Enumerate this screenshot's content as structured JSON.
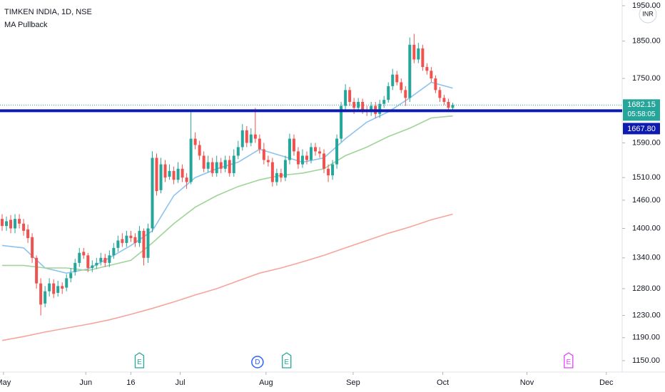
{
  "chart_data": {
    "type": "candlestick",
    "title": "TIMKEN INDIA, 1D, NSE",
    "subtitle": "MA Pullback",
    "currency": "INR",
    "up_color": "#26a69a",
    "down_color": "#ef5350",
    "log_scale": true,
    "x": [
      0,
      1,
      2,
      3,
      4,
      5,
      6,
      7,
      8,
      9,
      10,
      11,
      12,
      13,
      14,
      15,
      16,
      17,
      18,
      19,
      20,
      21,
      22,
      23,
      24,
      25,
      26,
      27,
      28,
      29,
      30,
      31,
      32,
      33,
      34,
      35,
      36,
      37,
      38,
      39,
      40,
      41,
      42,
      43,
      44,
      45,
      46,
      47,
      48,
      49,
      50,
      51,
      52,
      53,
      54,
      55,
      56,
      57,
      58,
      59,
      60,
      61,
      62,
      63,
      64,
      65,
      66,
      67,
      68,
      69,
      70,
      71,
      72,
      73,
      74,
      75,
      76,
      77,
      78,
      79,
      80,
      81,
      82,
      83,
      84,
      85,
      86,
      87,
      88,
      89,
      90,
      91,
      92,
      93,
      94,
      95,
      96,
      97,
      98,
      99,
      100,
      101,
      102,
      103,
      104,
      105
    ],
    "open": [
      1420,
      1405,
      1418,
      1400,
      1420,
      1410,
      1398,
      1382,
      1340,
      1290,
      1252,
      1275,
      1290,
      1272,
      1285,
      1282,
      1300,
      1312,
      1330,
      1352,
      1345,
      1320,
      1325,
      1332,
      1340,
      1330,
      1345,
      1360,
      1378,
      1370,
      1385,
      1382,
      1370,
      1395,
      1340,
      1400,
      1555,
      1482,
      1540,
      1512,
      1525,
      1505,
      1530,
      1510,
      1500,
      1600,
      1585,
      1560,
      1530,
      1545,
      1520,
      1545,
      1530,
      1550,
      1520,
      1560,
      1580,
      1620,
      1590,
      1610,
      1600,
      1575,
      1550,
      1545,
      1500,
      1520,
      1510,
      1550,
      1600,
      1570,
      1540,
      1560,
      1550,
      1580,
      1570,
      1565,
      1530,
      1515,
      1540,
      1600,
      1680,
      1720,
      1690,
      1675,
      1690,
      1670,
      1665,
      1680,
      1660,
      1685,
      1695,
      1730,
      1760,
      1740,
      1720,
      1700,
      1840,
      1800,
      1830,
      1780,
      1770,
      1750,
      1720,
      1700,
      1690,
      1675
    ],
    "high": [
      1430,
      1425,
      1428,
      1430,
      1430,
      1420,
      1408,
      1390,
      1345,
      1300,
      1285,
      1300,
      1298,
      1295,
      1292,
      1308,
      1320,
      1338,
      1360,
      1360,
      1350,
      1335,
      1340,
      1350,
      1348,
      1355,
      1370,
      1385,
      1390,
      1395,
      1395,
      1390,
      1405,
      1400,
      1410,
      1570,
      1565,
      1555,
      1550,
      1540,
      1535,
      1545,
      1540,
      1520,
      1665,
      1615,
      1595,
      1570,
      1560,
      1555,
      1560,
      1555,
      1560,
      1560,
      1575,
      1595,
      1635,
      1630,
      1625,
      1675,
      1610,
      1590,
      1560,
      1555,
      1530,
      1530,
      1560,
      1612,
      1610,
      1580,
      1575,
      1570,
      1590,
      1590,
      1580,
      1575,
      1540,
      1550,
      1610,
      1690,
      1735,
      1728,
      1700,
      1700,
      1698,
      1680,
      1690,
      1690,
      1695,
      1705,
      1740,
      1775,
      1770,
      1750,
      1730,
      1860,
      1870,
      1845,
      1840,
      1790,
      1780,
      1758,
      1728,
      1708,
      1698,
      1688
    ],
    "low": [
      1395,
      1395,
      1390,
      1390,
      1400,
      1385,
      1370,
      1330,
      1280,
      1230,
      1245,
      1265,
      1262,
      1265,
      1270,
      1275,
      1292,
      1305,
      1322,
      1338,
      1312,
      1312,
      1318,
      1325,
      1322,
      1322,
      1338,
      1352,
      1362,
      1362,
      1372,
      1362,
      1362,
      1325,
      1330,
      1392,
      1470,
      1475,
      1500,
      1505,
      1495,
      1498,
      1500,
      1485,
      1495,
      1575,
      1550,
      1522,
      1522,
      1512,
      1512,
      1520,
      1522,
      1512,
      1512,
      1552,
      1572,
      1580,
      1582,
      1590,
      1565,
      1540,
      1535,
      1490,
      1492,
      1500,
      1502,
      1540,
      1560,
      1530,
      1532,
      1540,
      1542,
      1560,
      1555,
      1520,
      1500,
      1505,
      1530,
      1592,
      1670,
      1680,
      1660,
      1665,
      1660,
      1655,
      1655,
      1650,
      1650,
      1675,
      1688,
      1720,
      1732,
      1712,
      1680,
      1690,
      1790,
      1790,
      1770,
      1760,
      1740,
      1712,
      1690,
      1682,
      1665,
      1668
    ],
    "close": [
      1405,
      1415,
      1400,
      1420,
      1410,
      1395,
      1380,
      1340,
      1290,
      1250,
      1275,
      1290,
      1270,
      1285,
      1280,
      1300,
      1310,
      1330,
      1350,
      1345,
      1320,
      1325,
      1330,
      1340,
      1330,
      1345,
      1360,
      1375,
      1370,
      1385,
      1380,
      1370,
      1395,
      1340,
      1400,
      1555,
      1480,
      1540,
      1510,
      1525,
      1505,
      1530,
      1510,
      1500,
      1600,
      1585,
      1560,
      1530,
      1545,
      1520,
      1545,
      1530,
      1550,
      1520,
      1560,
      1580,
      1620,
      1590,
      1610,
      1600,
      1575,
      1550,
      1545,
      1500,
      1520,
      1510,
      1550,
      1600,
      1570,
      1540,
      1560,
      1550,
      1580,
      1570,
      1565,
      1530,
      1515,
      1540,
      1600,
      1680,
      1720,
      1690,
      1675,
      1690,
      1670,
      1665,
      1680,
      1660,
      1685,
      1695,
      1730,
      1760,
      1740,
      1720,
      1700,
      1840,
      1800,
      1830,
      1780,
      1770,
      1750,
      1720,
      1700,
      1690,
      1675,
      1682.15
    ],
    "moving_averages": [
      {
        "color": "#8cc3ee",
        "x": [
          0,
          5,
          10,
          15,
          20,
          25,
          30,
          35,
          40,
          45,
          50,
          55,
          60,
          65,
          70,
          75,
          80,
          85,
          90,
          95,
          100,
          105
        ],
        "values": [
          1365,
          1360,
          1320,
          1310,
          1318,
          1340,
          1365,
          1395,
          1470,
          1510,
          1530,
          1545,
          1575,
          1560,
          1545,
          1555,
          1600,
          1640,
          1665,
          1700,
          1740,
          1725
        ]
      },
      {
        "color": "#9fd596",
        "x": [
          0,
          5,
          10,
          15,
          20,
          25,
          30,
          35,
          40,
          45,
          50,
          55,
          60,
          65,
          70,
          75,
          80,
          85,
          90,
          95,
          100,
          105
        ],
        "values": [
          1325,
          1325,
          1320,
          1320,
          1315,
          1325,
          1335,
          1370,
          1410,
          1445,
          1470,
          1490,
          1505,
          1515,
          1520,
          1530,
          1560,
          1580,
          1605,
          1625,
          1650,
          1655
        ]
      },
      {
        "color": "#f6a59c",
        "x": [
          0,
          5,
          10,
          15,
          20,
          25,
          30,
          35,
          40,
          45,
          50,
          55,
          60,
          65,
          70,
          75,
          80,
          85,
          90,
          95,
          100,
          105
        ],
        "values": [
          1185,
          1192,
          1200,
          1207,
          1214,
          1222,
          1232,
          1243,
          1255,
          1268,
          1280,
          1295,
          1310,
          1320,
          1332,
          1345,
          1360,
          1375,
          1390,
          1403,
          1418,
          1430
        ]
      }
    ],
    "levels": [
      {
        "value": 1667.8,
        "label": "1667.80",
        "color": "#0d1bb0"
      }
    ],
    "last_price": {
      "value": 1682.15,
      "label": "1682.15",
      "countdown": "05:58:05",
      "color": "#26a69a"
    },
    "events": [
      {
        "x": 32,
        "label": "E",
        "color": "#26a69a",
        "shape": "flag"
      },
      {
        "x": 59.5,
        "label": "D",
        "color": "#2962ff",
        "shape": "circle"
      },
      {
        "x": 66.3,
        "label": "E",
        "color": "#26a69a",
        "shape": "flag"
      },
      {
        "x": 132,
        "label": "E",
        "color": "#e040fb",
        "shape": "flag"
      }
    ],
    "ylim": [
      1150,
      1950
    ],
    "yticks": [
      {
        "value": 1150,
        "label": "1150.00"
      },
      {
        "value": 1190,
        "label": "1190.00"
      },
      {
        "value": 1230,
        "label": "1230.00"
      },
      {
        "value": 1280,
        "label": "1280.00"
      },
      {
        "value": 1340,
        "label": "1340.00"
      },
      {
        "value": 1400,
        "label": "1400.00"
      },
      {
        "value": 1460,
        "label": "1460.00"
      },
      {
        "value": 1510,
        "label": "1510.00"
      },
      {
        "value": 1590,
        "label": "1590.00"
      },
      {
        "value": 1750,
        "label": "1750.00"
      },
      {
        "value": 1850,
        "label": "1850.00"
      },
      {
        "value": 1950,
        "label": "1950.00"
      }
    ],
    "xlim": [
      -0.5,
      144.5
    ],
    "xticks": [
      {
        "value": 0.3,
        "label": "May"
      },
      {
        "value": 19.5,
        "label": "Jun"
      },
      {
        "value": 30,
        "label": "16"
      },
      {
        "value": 41.5,
        "label": "Jul"
      },
      {
        "value": 61.5,
        "label": "Aug"
      },
      {
        "value": 81.8,
        "label": "Sep"
      },
      {
        "value": 102.7,
        "label": "Oct"
      },
      {
        "value": 122.3,
        "label": "Nov"
      },
      {
        "value": 140.8,
        "label": "Dec"
      }
    ]
  }
}
